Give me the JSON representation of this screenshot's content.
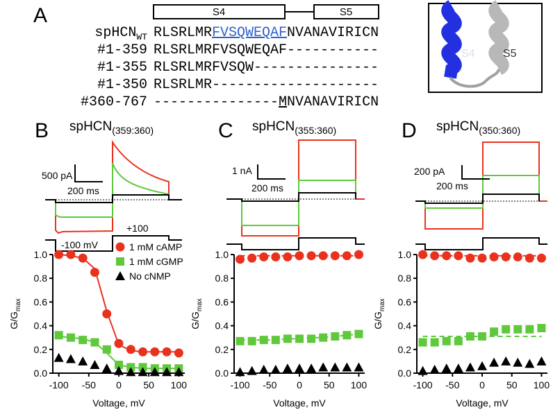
{
  "panel_a": {
    "letter": "A",
    "segments": [
      "S4",
      "S5"
    ],
    "rows": [
      {
        "name": "spHCN",
        "name_sub": "WT",
        "seq": [
          "RLSRLMR",
          "FVSQWEQAF",
          "NVANAVIRICN"
        ]
      },
      {
        "name": "#1-359",
        "seq": [
          "RLSRLMRFVSQWEQAF-----------"
        ]
      },
      {
        "name": "#1-355",
        "seq": [
          "RLSRLMRFVSQW---------------"
        ]
      },
      {
        "name": "#1-350",
        "seq": [
          "RLSRLMR--------------------"
        ]
      },
      {
        "name": "#360-767",
        "seq": [
          "---------------",
          "M",
          "NVANAVIRICN"
        ]
      }
    ],
    "structure_labels": [
      "S4",
      "S5"
    ]
  },
  "panels": [
    {
      "letter": "B",
      "title": "spHCN",
      "title_sub": "(359:360)",
      "scale_current": "500 pA",
      "scale_time": "200 ms",
      "protocol_low": "-100 mV",
      "protocol_high": "+100"
    },
    {
      "letter": "C",
      "title": "spHCN",
      "title_sub": "(355:360)",
      "scale_current": "1 nA",
      "scale_time": "200 ms"
    },
    {
      "letter": "D",
      "title": "spHCN",
      "title_sub": "(350:360)",
      "scale_current": "200 pA",
      "scale_time": "200 ms"
    }
  ],
  "chart_data": [
    {
      "type": "scatter",
      "xlabel": "Voltage, mV",
      "ylabel": "G/G",
      "ylabel_sub": "max",
      "x": [
        -100,
        -80,
        -60,
        -40,
        -20,
        0,
        20,
        40,
        60,
        80,
        100
      ],
      "xlim": [
        -110,
        110
      ],
      "xticks": [
        -100,
        -50,
        0,
        50,
        100
      ],
      "ylim": [
        0,
        1
      ],
      "yticks": [
        {
          "value": 0,
          "label": "0.0"
        },
        0.2,
        0.4,
        0.6,
        0.8,
        {
          "value": 1,
          "label": "1.0"
        }
      ],
      "legend": "upper right",
      "series": [
        {
          "name": "1 mM cAMP",
          "color": "#e8321e",
          "marker": "circle",
          "values": [
            1.0,
            1.0,
            0.97,
            0.85,
            0.5,
            0.25,
            0.2,
            0.18,
            0.18,
            0.18,
            0.17
          ],
          "fit": [
            1.0,
            0.99,
            0.97,
            0.88,
            0.52,
            0.24,
            0.19,
            0.18,
            0.18,
            0.18,
            0.18
          ]
        },
        {
          "name": "1 mM cGMP",
          "color": "#5fc83c",
          "marker": "square",
          "values": [
            0.32,
            0.3,
            0.28,
            0.26,
            0.2,
            0.07,
            0.05,
            0.05,
            0.04,
            0.04,
            0.04
          ],
          "fit": [
            0.31,
            0.3,
            0.29,
            0.26,
            0.17,
            0.07,
            0.05,
            0.04,
            0.04,
            0.04,
            0.04
          ]
        },
        {
          "name": "No cNMP",
          "color": "#000000",
          "marker": "triangle",
          "values": [
            0.13,
            0.12,
            0.1,
            0.07,
            0.04,
            0.02,
            0.01,
            0.01,
            0.01,
            0.01,
            0.01
          ]
        }
      ]
    },
    {
      "type": "scatter",
      "xlabel": "Voltage, mV",
      "ylabel": "G/G",
      "ylabel_sub": "max",
      "x": [
        -100,
        -80,
        -60,
        -40,
        -20,
        0,
        20,
        40,
        60,
        80,
        100
      ],
      "xlim": [
        -110,
        110
      ],
      "xticks": [
        -100,
        -50,
        0,
        50,
        100
      ],
      "ylim": [
        0,
        1
      ],
      "yticks": [
        {
          "value": 0,
          "label": "0.0"
        },
        0.2,
        0.4,
        0.6,
        0.8,
        {
          "value": 1,
          "label": "1.0"
        }
      ],
      "series": [
        {
          "color": "#e8321e",
          "marker": "circle",
          "values": [
            0.96,
            0.97,
            0.98,
            0.98,
            0.98,
            0.99,
            0.99,
            0.99,
            0.99,
            0.99,
            1.0
          ],
          "fit": [
            0.99,
            0.99,
            0.99,
            0.99,
            0.99,
            0.99,
            0.99,
            0.99,
            0.99,
            0.99,
            0.99
          ],
          "fit_dashed": true
        },
        {
          "color": "#5fc83c",
          "marker": "square",
          "values": [
            0.27,
            0.27,
            0.28,
            0.28,
            0.29,
            0.29,
            0.29,
            0.3,
            0.31,
            0.32,
            0.33
          ],
          "fit": [
            0.28,
            0.28,
            0.28,
            0.28,
            0.29,
            0.29,
            0.3,
            0.3,
            0.31,
            0.32,
            0.33
          ],
          "fit_dashed": true
        },
        {
          "color": "#000000",
          "marker": "triangle",
          "values": [
            0.01,
            0.02,
            0.03,
            0.03,
            0.04,
            0.04,
            0.04,
            0.05,
            0.05,
            0.05,
            0.05
          ]
        }
      ]
    },
    {
      "type": "scatter",
      "xlabel": "Voltage, mV",
      "ylabel": "G/G",
      "ylabel_sub": "max",
      "x": [
        -100,
        -80,
        -60,
        -40,
        -20,
        0,
        20,
        40,
        60,
        80,
        100
      ],
      "xlim": [
        -110,
        110
      ],
      "xticks": [
        -100,
        -50,
        0,
        50,
        100
      ],
      "ylim": [
        0,
        1
      ],
      "yticks": [
        {
          "value": 0,
          "label": "0.0"
        },
        0.2,
        0.4,
        0.6,
        0.8,
        {
          "value": 1,
          "label": "1.0"
        }
      ],
      "series": [
        {
          "color": "#e8321e",
          "marker": "circle",
          "values": [
            1.0,
            0.99,
            0.99,
            0.99,
            0.97,
            0.97,
            0.98,
            0.98,
            0.98,
            0.97,
            0.97
          ],
          "fit": [
            0.99,
            0.99,
            0.99,
            0.99,
            0.99,
            0.99,
            0.99,
            0.99,
            0.99,
            0.99,
            0.99
          ],
          "fit_dashed": true
        },
        {
          "color": "#5fc83c",
          "marker": "square",
          "values": [
            0.26,
            0.26,
            0.27,
            0.27,
            0.31,
            0.31,
            0.35,
            0.37,
            0.37,
            0.37,
            0.38
          ],
          "fit": [
            0.31,
            0.31,
            0.31,
            0.31,
            0.31,
            0.31,
            0.31,
            0.31,
            0.31,
            0.31,
            0.31
          ],
          "fit_dashed": true
        },
        {
          "color": "#000000",
          "marker": "triangle",
          "values": [
            0.02,
            0.03,
            0.04,
            0.04,
            0.05,
            0.06,
            0.09,
            0.1,
            0.09,
            0.08,
            0.1
          ]
        }
      ]
    }
  ]
}
